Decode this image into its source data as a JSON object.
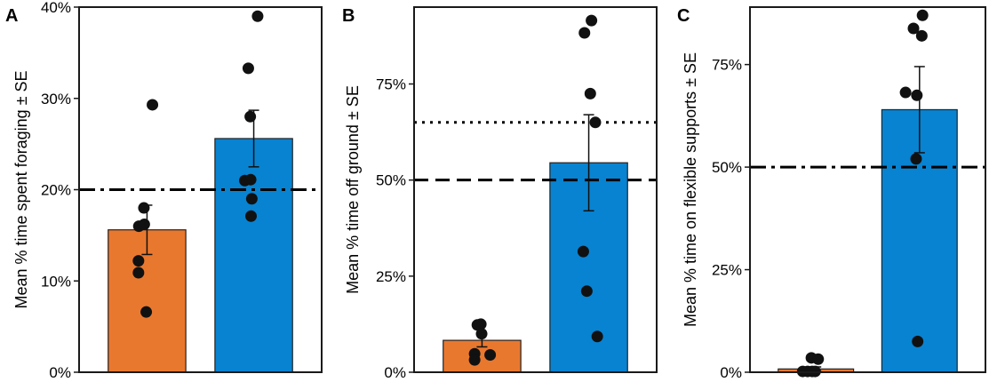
{
  "figure": {
    "colors": {
      "orange": "#e9782f",
      "blue": "#0883d1",
      "point": "#111111",
      "frame": "#1a1a1a"
    }
  },
  "chart_data": [
    {
      "type": "bar",
      "panel": "A",
      "ylabel": "Mean % time spent foraging ± SE",
      "ylim": [
        0,
        40
      ],
      "yticks": [
        0,
        10,
        20,
        30,
        40
      ],
      "ytick_labels": [
        "0%",
        "10%",
        "20%",
        "30%",
        "40%"
      ],
      "categories": [
        "",
        ""
      ],
      "bar_colors": [
        "#e9782f",
        "#0883d1"
      ],
      "values": [
        15.6,
        25.6
      ],
      "se": [
        2.7,
        3.1
      ],
      "points": [
        [
          {
            "j": 0.14,
            "y": 29.3
          },
          {
            "j": -0.08,
            "y": 18.0
          },
          {
            "j": -0.21,
            "y": 16.0
          },
          {
            "j": -0.07,
            "y": 16.2
          },
          {
            "j": -0.22,
            "y": 12.2
          },
          {
            "j": -0.22,
            "y": 10.9
          },
          {
            "j": -0.02,
            "y": 6.6
          }
        ],
        [
          {
            "j": -0.14,
            "y": 33.3
          },
          {
            "j": 0.1,
            "y": 39.0
          },
          {
            "j": -0.09,
            "y": 28.0
          },
          {
            "j": -0.23,
            "y": 21.0
          },
          {
            "j": -0.08,
            "y": 21.1
          },
          {
            "j": -0.05,
            "y": 19.0
          },
          {
            "j": -0.07,
            "y": 17.1
          }
        ]
      ],
      "reference_lines": [
        {
          "y": 20,
          "style": "dashdot"
        }
      ]
    },
    {
      "type": "bar",
      "panel": "B",
      "ylabel": "Mean % time off ground ± SE",
      "ylim": [
        0,
        95
      ],
      "yticks": [
        0,
        25,
        50,
        75
      ],
      "ytick_labels": [
        "0%",
        "25%",
        "50%",
        "75%"
      ],
      "categories": [
        "",
        ""
      ],
      "bar_colors": [
        "#e9782f",
        "#0883d1"
      ],
      "values": [
        8.3,
        54.5
      ],
      "se": [
        1.7,
        12.5
      ],
      "points": [
        [
          {
            "j": -0.12,
            "y": 12.3
          },
          {
            "j": -0.03,
            "y": 12.5
          },
          {
            "j": -0.01,
            "y": 10.0
          },
          {
            "j": -0.19,
            "y": 4.8
          },
          {
            "j": -0.19,
            "y": 3.2
          },
          {
            "j": 0.21,
            "y": 4.5
          }
        ],
        [
          {
            "j": -0.11,
            "y": 88.3
          },
          {
            "j": 0.07,
            "y": 91.5
          },
          {
            "j": 0.04,
            "y": 72.5
          },
          {
            "j": 0.17,
            "y": 65.0
          },
          {
            "j": -0.14,
            "y": 31.4
          },
          {
            "j": -0.05,
            "y": 21.1
          },
          {
            "j": 0.22,
            "y": 9.3
          }
        ]
      ],
      "reference_lines": [
        {
          "y": 65,
          "style": "dotted"
        },
        {
          "y": 50,
          "style": "dashed"
        }
      ]
    },
    {
      "type": "bar",
      "panel": "C",
      "ylabel": "Mean % time on flexible supports ± SE",
      "ylim": [
        0,
        89
      ],
      "yticks": [
        0,
        25,
        50,
        75
      ],
      "ytick_labels": [
        "0%",
        "25%",
        "50%",
        "75%"
      ],
      "categories": [
        "",
        ""
      ],
      "bar_colors": [
        "#e9782f",
        "#0883d1"
      ],
      "values": [
        0.8,
        64.0
      ],
      "se": [
        0.5,
        10.5
      ],
      "points": [
        [
          {
            "j": -0.35,
            "y": 0.2
          },
          {
            "j": -0.22,
            "y": 0.2
          },
          {
            "j": -0.1,
            "y": 0.2
          },
          {
            "j": -0.02,
            "y": 0.2
          },
          {
            "j": -0.12,
            "y": 3.5
          },
          {
            "j": 0.06,
            "y": 3.2
          }
        ],
        [
          {
            "j": 0.08,
            "y": 87.0
          },
          {
            "j": -0.16,
            "y": 83.8
          },
          {
            "j": 0.06,
            "y": 82.0
          },
          {
            "j": -0.37,
            "y": 68.2
          },
          {
            "j": -0.07,
            "y": 67.5
          },
          {
            "j": -0.09,
            "y": 52.0
          },
          {
            "j": -0.05,
            "y": 7.5
          }
        ]
      ],
      "reference_lines": [
        {
          "y": 50,
          "style": "dashdot"
        }
      ]
    }
  ]
}
